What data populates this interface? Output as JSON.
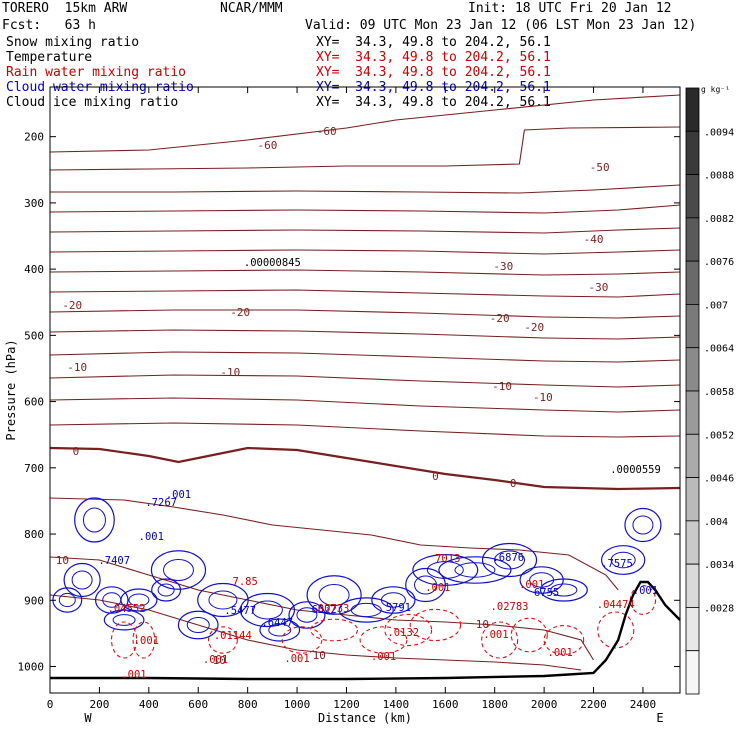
{
  "header": {
    "model": "TORERO  15km ARW",
    "org": "NCAR/MMM",
    "init": "Init: 18 UTC Fri 20 Jan 12",
    "fcst": "Fcst:   63 h",
    "valid": "Valid: 09 UTC Mon 23 Jan 12 (06 LST Mon 23 Jan 12)"
  },
  "fields": [
    {
      "label": "Snow mixing ratio",
      "xy": "XY=  34.3, 49.8 to 204.2, 56.1",
      "color": "#000000",
      "xy_color": "#000000"
    },
    {
      "label": "Temperature",
      "xy": "XY=  34.3, 49.8 to 204.2, 56.1",
      "color": "#000000",
      "xy_color": "#cc0000"
    },
    {
      "label": "Rain water mixing ratio",
      "xy": "XY=  34.3, 49.8 to 204.2, 56.1",
      "color": "#cc0000",
      "xy_color": "#cc0000"
    },
    {
      "label": "Cloud water mixing ratio",
      "xy": "XY=  34.3, 49.8 to 204.2, 56.1",
      "color": "#0000cc",
      "xy_color": "#0000cc"
    },
    {
      "label": "Cloud ice mixing ratio",
      "xy": "XY=  34.3, 49.8 to 204.2, 56.1",
      "color": "#000000",
      "xy_color": "#000000"
    }
  ],
  "chart_data": {
    "type": "contour cross-section",
    "xlabel": "Distance (km)",
    "ylabel": "Pressure (hPa)",
    "xlim": [
      0,
      2550
    ],
    "ylim": [
      1040,
      125
    ],
    "xticks": [
      0,
      200,
      400,
      600,
      800,
      1000,
      1200,
      1400,
      1600,
      1800,
      2000,
      2200,
      2400
    ],
    "yticks": [
      200,
      300,
      400,
      500,
      600,
      700,
      800,
      900,
      1000
    ],
    "endpoint_labels": {
      "left": "W",
      "right": "E"
    },
    "colorbar": {
      "unit": "g kg⁻¹",
      "ticks": [
        ".0094",
        ".0088",
        ".0082",
        ".0076",
        ".007",
        ".0064",
        ".0058",
        ".0052",
        ".0046",
        ".004",
        ".0034",
        ".0028"
      ],
      "colors": [
        "#2a2a2a",
        "#3a3a3a",
        "#4a4a4a",
        "#5a5a5a",
        "#6a6a6a",
        "#7a7a7a",
        "#8a8a8a",
        "#9a9a9a",
        "#aaaaaa",
        "#bababa",
        "#cacaca",
        "#dadada",
        "#e8e8e8",
        "#f6f6f6"
      ]
    },
    "temperature_contours": [
      {
        "value": -60,
        "points": [
          [
            0,
            152
          ],
          [
            400,
            150
          ],
          [
            800,
            140
          ],
          [
            1200,
            128
          ],
          [
            1400,
            120
          ],
          [
            1800,
            110
          ],
          [
            2200,
            100
          ],
          [
            2550,
            95
          ]
        ]
      },
      {
        "value": -50,
        "points": [
          [
            0,
            170
          ],
          [
            400,
            169
          ],
          [
            800,
            168
          ],
          [
            1200,
            166
          ],
          [
            1600,
            166
          ],
          [
            1900,
            164
          ],
          [
            1920,
            130
          ],
          [
            2100,
            128
          ],
          [
            2550,
            127
          ]
        ]
      },
      {
        "value": -50,
        "points": [
          [
            0,
            192
          ],
          [
            500,
            192
          ],
          [
            1000,
            191
          ],
          [
            1500,
            192
          ],
          [
            1900,
            193
          ],
          [
            2200,
            190
          ],
          [
            2550,
            185
          ]
        ]
      },
      {
        "value": -50,
        "points": [
          [
            0,
            212
          ],
          [
            500,
            211
          ],
          [
            1000,
            210
          ],
          [
            1500,
            211
          ],
          [
            2000,
            213
          ],
          [
            2300,
            210
          ],
          [
            2550,
            205
          ]
        ]
      },
      {
        "value": -40,
        "points": [
          [
            0,
            232
          ],
          [
            500,
            231
          ],
          [
            1000,
            230
          ],
          [
            1500,
            231
          ],
          [
            2000,
            233
          ],
          [
            2300,
            230
          ],
          [
            2550,
            228
          ]
        ]
      },
      {
        "value": -40,
        "points": [
          [
            0,
            252
          ],
          [
            500,
            251
          ],
          [
            1000,
            250
          ],
          [
            1500,
            251
          ],
          [
            2000,
            254
          ],
          [
            2300,
            252
          ],
          [
            2550,
            250
          ]
        ]
      },
      {
        "value": -30,
        "points": [
          [
            0,
            272
          ],
          [
            500,
            271
          ],
          [
            1000,
            270
          ],
          [
            1500,
            272
          ],
          [
            2000,
            275
          ],
          [
            2300,
            274
          ],
          [
            2550,
            272
          ]
        ]
      },
      {
        "value": -30,
        "points": [
          [
            0,
            292
          ],
          [
            500,
            291
          ],
          [
            1000,
            290
          ],
          [
            1500,
            293
          ],
          [
            2000,
            296
          ],
          [
            2300,
            297
          ],
          [
            2550,
            294
          ]
        ]
      },
      {
        "value": -20,
        "points": [
          [
            0,
            312
          ],
          [
            500,
            310
          ],
          [
            1000,
            310
          ],
          [
            1500,
            313
          ],
          [
            2000,
            317
          ],
          [
            2300,
            318
          ],
          [
            2550,
            316
          ]
        ]
      },
      {
        "value": -20,
        "points": [
          [
            0,
            332
          ],
          [
            500,
            330
          ],
          [
            1000,
            331
          ],
          [
            1500,
            334
          ],
          [
            2000,
            338
          ],
          [
            2300,
            339
          ],
          [
            2550,
            337
          ]
        ]
      },
      {
        "value": -10,
        "points": [
          [
            0,
            355
          ],
          [
            500,
            352
          ],
          [
            1000,
            353
          ],
          [
            1500,
            357
          ],
          [
            2000,
            361
          ],
          [
            2300,
            362
          ],
          [
            2550,
            360
          ]
        ]
      },
      {
        "value": -10,
        "points": [
          [
            0,
            378
          ],
          [
            500,
            375
          ],
          [
            1000,
            376
          ],
          [
            1500,
            381
          ],
          [
            2000,
            385
          ],
          [
            2300,
            387
          ],
          [
            2550,
            385
          ]
        ]
      },
      {
        "value": -10,
        "points": [
          [
            0,
            400
          ],
          [
            500,
            398
          ],
          [
            1000,
            400
          ],
          [
            1500,
            406
          ],
          [
            2000,
            410
          ],
          [
            2300,
            412
          ],
          [
            2550,
            410
          ]
        ]
      },
      {
        "value": -10,
        "points": [
          [
            0,
            425
          ],
          [
            500,
            423
          ],
          [
            1000,
            425
          ],
          [
            1500,
            431
          ],
          [
            2000,
            436
          ],
          [
            2300,
            437
          ],
          [
            2550,
            436
          ]
        ]
      },
      {
        "value": 0,
        "points": [
          [
            0,
            448
          ],
          [
            200,
            449
          ],
          [
            400,
            456
          ],
          [
            520,
            462
          ],
          [
            600,
            458
          ],
          [
            800,
            448
          ],
          [
            1000,
            450
          ],
          [
            1300,
            462
          ],
          [
            1600,
            474
          ],
          [
            1800,
            480
          ],
          [
            2000,
            487
          ],
          [
            2300,
            489
          ],
          [
            2550,
            488
          ]
        ]
      },
      {
        "value": 10,
        "points": [
          [
            0,
            498
          ],
          [
            300,
            500
          ],
          [
            500,
            507
          ],
          [
            700,
            515
          ],
          [
            900,
            525
          ],
          [
            1100,
            530
          ],
          [
            1300,
            535
          ],
          [
            1500,
            545
          ],
          [
            1700,
            548
          ],
          [
            1900,
            550
          ],
          [
            2100,
            555
          ],
          [
            2250,
            575
          ],
          [
            2300,
            590
          ]
        ]
      },
      {
        "value": 10,
        "points": [
          [
            0,
            557
          ],
          [
            200,
            560
          ],
          [
            400,
            575
          ],
          [
            600,
            590
          ],
          [
            800,
            600
          ],
          [
            1000,
            610
          ],
          [
            1200,
            615
          ],
          [
            1400,
            620
          ],
          [
            1600,
            622
          ],
          [
            1800,
            625
          ],
          [
            2000,
            630
          ],
          [
            2150,
            640
          ],
          [
            2200,
            660
          ]
        ]
      },
      {
        "value": 10,
        "points": [
          [
            0,
            595
          ],
          [
            200,
            600
          ],
          [
            400,
            610
          ],
          [
            600,
            625
          ],
          [
            800,
            640
          ],
          [
            1000,
            650
          ],
          [
            1200,
            655
          ],
          [
            1400,
            658
          ],
          [
            1600,
            660
          ],
          [
            1800,
            662
          ],
          [
            2000,
            665
          ],
          [
            2150,
            670
          ]
        ]
      }
    ],
    "temperature_labels": [
      {
        "x": 880,
        "y": 145,
        "text": "-60"
      },
      {
        "x": 1120,
        "y": 131,
        "text": "-60"
      },
      {
        "x": 2225,
        "y": 167,
        "text": "-50"
      },
      {
        "x": 2200,
        "y": 239,
        "text": "-40"
      },
      {
        "x": 1835,
        "y": 266,
        "text": "-30"
      },
      {
        "x": 2220,
        "y": 287,
        "text": "-30"
      },
      {
        "x": 90,
        "y": 305,
        "text": "-20"
      },
      {
        "x": 770,
        "y": 312,
        "text": "-20"
      },
      {
        "x": 1820,
        "y": 318,
        "text": "-20"
      },
      {
        "x": 1960,
        "y": 327,
        "text": "-20"
      },
      {
        "x": 110,
        "y": 367,
        "text": "-10"
      },
      {
        "x": 730,
        "y": 372,
        "text": "-10"
      },
      {
        "x": 1830,
        "y": 386,
        "text": "-10"
      },
      {
        "x": 1995,
        "y": 397,
        "text": "-10"
      },
      {
        "x": 105,
        "y": 451,
        "text": "0"
      },
      {
        "x": 1560,
        "y": 476,
        "text": "0"
      },
      {
        "x": 1875,
        "y": 483,
        "text": "0"
      },
      {
        "x": 50,
        "y": 560,
        "text": "10"
      },
      {
        "x": 1750,
        "y": 624,
        "text": "10"
      },
      {
        "x": 1090,
        "y": 655,
        "text": "10"
      },
      {
        "x": 685,
        "y": 660,
        "text": "10"
      }
    ],
    "max_labels": [
      {
        "x": 900,
        "y": 262,
        "text": ".00000845",
        "color": "#000000"
      },
      {
        "x": 2370,
        "y": 469,
        "text": ".0000559",
        "color": "#000000"
      },
      {
        "x": 450,
        "y": 502,
        "text": ".7267",
        "color": "#0000cc"
      },
      {
        "x": 260,
        "y": 560,
        "text": ".7407",
        "color": "#0000cc"
      },
      {
        "x": 790,
        "y": 581,
        "text": "7.85",
        "color": "#cc0000"
      },
      {
        "x": 770,
        "y": 610,
        "text": ".5477",
        "color": "#0000cc"
      },
      {
        "x": 1110,
        "y": 609,
        "text": "6522",
        "color": "#0000cc"
      },
      {
        "x": 1135,
        "y": 608,
        "text": ".00733",
        "color": "#cc0000"
      },
      {
        "x": 1410,
        "y": 607,
        "text": "5791",
        "color": "#0000cc"
      },
      {
        "x": 1610,
        "y": 558,
        "text": "7013",
        "color": "#cc0000"
      },
      {
        "x": 1855,
        "y": 557,
        "text": ".6876",
        "color": "#0000cc"
      },
      {
        "x": 2295,
        "y": 563,
        "text": ".7575",
        "color": "#0000cc"
      },
      {
        "x": 2010,
        "y": 592,
        "text": "6755",
        "color": "#0000cc"
      },
      {
        "x": 1860,
        "y": 606,
        "text": ".02783",
        "color": "#cc0000"
      },
      {
        "x": 2290,
        "y": 604,
        "text": ".04474",
        "color": "#cc0000"
      },
      {
        "x": 310,
        "y": 608,
        "text": ".04552",
        "color": "#cc0000"
      },
      {
        "x": 920,
        "y": 622,
        "text": ".6447",
        "color": "#0000cc"
      },
      {
        "x": 740,
        "y": 635,
        "text": ".01144",
        "color": "#cc0000"
      },
      {
        "x": 1430,
        "y": 632,
        "text": ".0132",
        "color": "#cc0000"
      },
      {
        "x": 520,
        "y": 494,
        "text": ".001",
        "color": "#0000cc"
      },
      {
        "x": 410,
        "y": 536,
        "text": ".001",
        "color": "#0000cc"
      },
      {
        "x": 390,
        "y": 640,
        "text": ".001",
        "color": "#cc0000"
      },
      {
        "x": 1000,
        "y": 658,
        "text": ".001",
        "color": "#cc0000"
      },
      {
        "x": 1350,
        "y": 656,
        "text": ".001",
        "color": "#cc0000"
      },
      {
        "x": 1805,
        "y": 634,
        "text": ".001",
        "color": "#cc0000"
      },
      {
        "x": 2065,
        "y": 652,
        "text": ".001",
        "color": "#cc0000"
      },
      {
        "x": 1950,
        "y": 584,
        "text": ".001",
        "color": "#cc0000"
      },
      {
        "x": 2410,
        "y": 590,
        "text": ".001",
        "color": "#0000cc"
      },
      {
        "x": 340,
        "y": 674,
        "text": ".001",
        "color": "#cc0000"
      },
      {
        "x": 670,
        "y": 659,
        "text": ".001",
        "color": "#cc0000"
      },
      {
        "x": 1570,
        "y": 587,
        "text": ".001",
        "color": "#cc0000"
      }
    ],
    "terrain": [
      [
        0,
        678
      ],
      [
        400,
        678
      ],
      [
        800,
        679
      ],
      [
        1200,
        679
      ],
      [
        1600,
        678
      ],
      [
        2000,
        676
      ],
      [
        2200,
        673
      ],
      [
        2250,
        660
      ],
      [
        2300,
        640
      ],
      [
        2330,
        615
      ],
      [
        2360,
        595
      ],
      [
        2390,
        582
      ],
      [
        2420,
        582
      ],
      [
        2450,
        590
      ],
      [
        2490,
        605
      ],
      [
        2550,
        620
      ]
    ]
  }
}
